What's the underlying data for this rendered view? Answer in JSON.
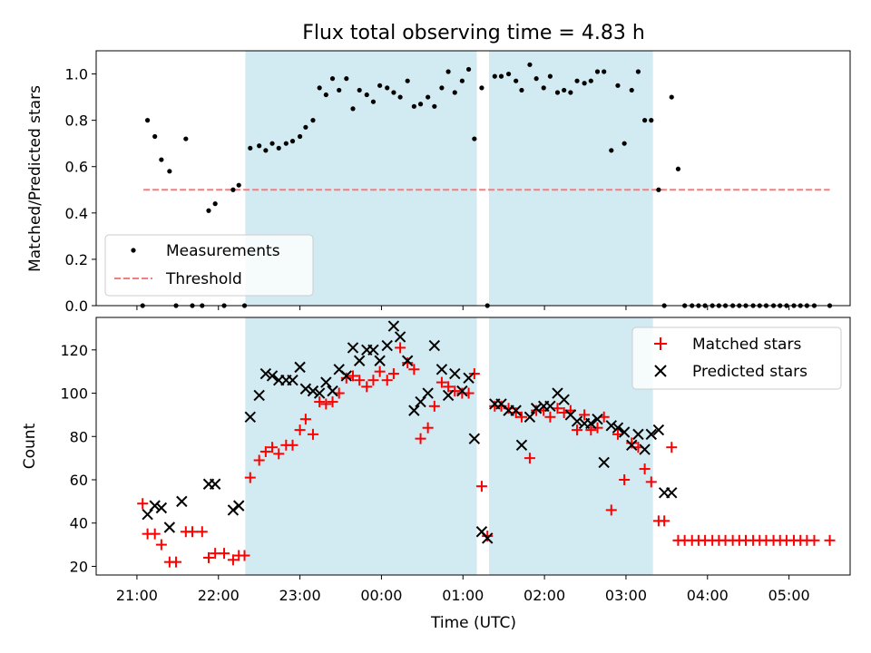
{
  "title": "Flux total observing time = 4.83 h",
  "xlabel": "Time (UTC)",
  "x_ticks": [
    "21:00",
    "22:00",
    "23:00",
    "00:00",
    "01:00",
    "02:00",
    "03:00",
    "04:00",
    "05:00"
  ],
  "chart_data": [
    {
      "type": "scatter",
      "ylabel": "Matched/Predicted stars",
      "ylim": [
        0,
        1.1
      ],
      "yticks": [
        "0.0",
        "0.2",
        "0.4",
        "0.6",
        "0.8",
        "1.0"
      ],
      "xlim_hours": [
        -0.5,
        8.75
      ],
      "threshold": {
        "name": "Threshold",
        "value": 0.5,
        "x_range_hours": [
          0.08,
          8.5
        ],
        "color": "#f08080"
      },
      "shaded_intervals_hours": [
        [
          1.33,
          4.17
        ],
        [
          4.32,
          6.33
        ]
      ],
      "shade_color": "#add8e6",
      "legend": {
        "location": "lower-left",
        "entries": [
          "Measurements",
          "Threshold"
        ]
      },
      "series": [
        {
          "name": "Measurements",
          "marker": "dot",
          "color": "#000000",
          "x": [
            0.07,
            0.13,
            0.22,
            0.3,
            0.4,
            0.48,
            0.6,
            0.68,
            0.8,
            0.88,
            0.96,
            1.07,
            1.18,
            1.25,
            1.32,
            1.39,
            1.5,
            1.58,
            1.66,
            1.74,
            1.83,
            1.91,
            2.0,
            2.07,
            2.16,
            2.24,
            2.32,
            2.4,
            2.48,
            2.57,
            2.65,
            2.73,
            2.82,
            2.9,
            2.98,
            3.07,
            3.15,
            3.23,
            3.32,
            3.4,
            3.48,
            3.57,
            3.65,
            3.74,
            3.82,
            3.9,
            3.99,
            4.07,
            4.14,
            4.23,
            4.3,
            4.39,
            4.47,
            4.56,
            4.65,
            4.72,
            4.82,
            4.9,
            4.99,
            5.07,
            5.16,
            5.24,
            5.32,
            5.4,
            5.49,
            5.57,
            5.65,
            5.73,
            5.82,
            5.9,
            5.98,
            6.07,
            6.15,
            6.23,
            6.31,
            6.4,
            6.47,
            6.56,
            6.64,
            6.72,
            6.81,
            6.89,
            6.97,
            7.06,
            7.14,
            7.22,
            7.31,
            7.39,
            7.47,
            7.56,
            7.64,
            7.72,
            7.81,
            7.89,
            7.97,
            8.06,
            8.14,
            8.22,
            8.31,
            8.5
          ],
          "y": [
            0.0,
            0.8,
            0.73,
            0.63,
            0.58,
            0.0,
            0.72,
            0.0,
            0.0,
            0.41,
            0.44,
            0.0,
            0.5,
            0.52,
            0.0,
            0.68,
            0.69,
            0.67,
            0.7,
            0.68,
            0.7,
            0.71,
            0.73,
            0.77,
            0.8,
            0.94,
            0.91,
            0.98,
            0.93,
            0.98,
            0.85,
            0.93,
            0.91,
            0.88,
            0.95,
            0.94,
            0.92,
            0.9,
            0.97,
            0.86,
            0.87,
            0.9,
            0.86,
            0.94,
            1.01,
            0.92,
            0.97,
            1.02,
            0.72,
            0.94,
            0.0,
            0.99,
            0.99,
            1.0,
            0.97,
            0.93,
            1.04,
            0.98,
            0.94,
            0.99,
            0.92,
            0.93,
            0.92,
            0.97,
            0.96,
            0.97,
            1.01,
            1.01,
            0.67,
            0.95,
            0.7,
            0.93,
            1.01,
            0.8,
            0.8,
            0.5,
            0.0,
            0.9,
            0.59,
            0.0,
            0.0,
            0.0,
            0.0,
            0.0,
            0.0,
            0.0,
            0.0,
            0.0,
            0.0,
            0.0,
            0.0,
            0.0,
            0.0,
            0.0,
            0.0,
            0.0,
            0.0,
            0.0,
            0.0,
            0.0
          ]
        }
      ]
    },
    {
      "type": "scatter",
      "ylabel": "Count",
      "ylim": [
        16,
        135
      ],
      "yticks": [
        "20",
        "40",
        "60",
        "80",
        "100",
        "120"
      ],
      "xlim_hours": [
        -0.5,
        8.75
      ],
      "shaded_intervals_hours": [
        [
          1.33,
          4.17
        ],
        [
          4.32,
          6.33
        ]
      ],
      "shade_color": "#add8e6",
      "legend": {
        "location": "top-right",
        "entries": [
          "Matched stars",
          "Predicted stars"
        ]
      },
      "series": [
        {
          "name": "Matched stars",
          "marker": "plus",
          "color": "#ff0000",
          "x": [
            0.07,
            0.13,
            0.22,
            0.3,
            0.4,
            0.48,
            0.6,
            0.68,
            0.8,
            0.88,
            0.96,
            1.07,
            1.18,
            1.25,
            1.32,
            1.39,
            1.5,
            1.58,
            1.66,
            1.74,
            1.83,
            1.91,
            2.0,
            2.07,
            2.16,
            2.24,
            2.32,
            2.4,
            2.48,
            2.57,
            2.65,
            2.73,
            2.82,
            2.9,
            2.98,
            3.07,
            3.15,
            3.23,
            3.32,
            3.4,
            3.48,
            3.57,
            3.65,
            3.74,
            3.82,
            3.9,
            3.99,
            4.07,
            4.14,
            4.23,
            4.3,
            4.39,
            4.47,
            4.56,
            4.65,
            4.72,
            4.82,
            4.9,
            4.99,
            5.07,
            5.16,
            5.24,
            5.32,
            5.4,
            5.49,
            5.57,
            5.65,
            5.73,
            5.82,
            5.9,
            5.98,
            6.07,
            6.15,
            6.23,
            6.31,
            6.4,
            6.47,
            6.56,
            6.64,
            6.72,
            6.81,
            6.89,
            6.97,
            7.06,
            7.14,
            7.22,
            7.31,
            7.39,
            7.47,
            7.56,
            7.64,
            7.72,
            7.81,
            7.89,
            7.97,
            8.06,
            8.14,
            8.22,
            8.31,
            8.5
          ],
          "y": [
            49,
            35,
            35,
            30,
            22,
            22,
            36,
            36,
            36,
            24,
            26,
            26,
            23,
            25,
            25,
            61,
            69,
            73,
            75,
            72,
            76,
            76,
            83,
            88,
            81,
            96,
            95,
            96,
            100,
            107,
            108,
            106,
            103,
            106,
            110,
            106,
            109,
            121,
            114,
            111,
            79,
            84,
            94,
            105,
            103,
            101,
            100,
            100,
            109,
            57,
            34,
            94,
            94,
            93,
            91,
            89,
            70,
            92,
            92,
            89,
            93,
            91,
            92,
            83,
            90,
            83,
            84,
            89,
            46,
            81,
            60,
            77,
            75,
            65,
            59,
            41,
            41,
            75,
            32,
            32,
            32,
            32,
            32,
            32,
            32,
            32,
            32,
            32,
            32,
            32,
            32,
            32,
            32,
            32,
            32,
            32,
            32,
            32,
            32,
            32
          ]
        },
        {
          "name": "Predicted stars",
          "marker": "x",
          "color": "#000000",
          "x": [
            0.13,
            0.22,
            0.3,
            0.4,
            0.55,
            0.88,
            0.96,
            1.18,
            1.25,
            1.39,
            1.5,
            1.58,
            1.66,
            1.74,
            1.83,
            1.91,
            2.0,
            2.07,
            2.16,
            2.24,
            2.32,
            2.4,
            2.48,
            2.57,
            2.65,
            2.73,
            2.82,
            2.9,
            2.98,
            3.07,
            3.15,
            3.23,
            3.32,
            3.4,
            3.48,
            3.57,
            3.65,
            3.74,
            3.82,
            3.9,
            3.99,
            4.07,
            4.14,
            4.23,
            4.3,
            4.39,
            4.47,
            4.56,
            4.65,
            4.72,
            4.82,
            4.9,
            4.99,
            5.07,
            5.16,
            5.24,
            5.32,
            5.4,
            5.49,
            5.57,
            5.65,
            5.73,
            5.82,
            5.9,
            5.98,
            6.07,
            6.15,
            6.23,
            6.31,
            6.4,
            6.47,
            6.56
          ],
          "y": [
            44,
            48,
            47,
            38,
            50,
            58,
            58,
            46,
            48,
            89,
            99,
            109,
            108,
            106,
            106,
            106,
            112,
            102,
            101,
            100,
            105,
            101,
            111,
            108,
            121,
            115,
            120,
            120,
            115,
            122,
            131,
            126,
            115,
            92,
            96,
            100,
            122,
            111,
            99,
            109,
            101,
            107,
            79,
            36,
            33,
            95,
            95,
            92,
            92,
            76,
            89,
            93,
            94,
            94,
            100,
            97,
            90,
            87,
            86,
            86,
            88,
            68,
            85,
            84,
            82,
            76,
            81,
            74,
            81,
            83,
            54,
            54
          ]
        }
      ]
    }
  ]
}
